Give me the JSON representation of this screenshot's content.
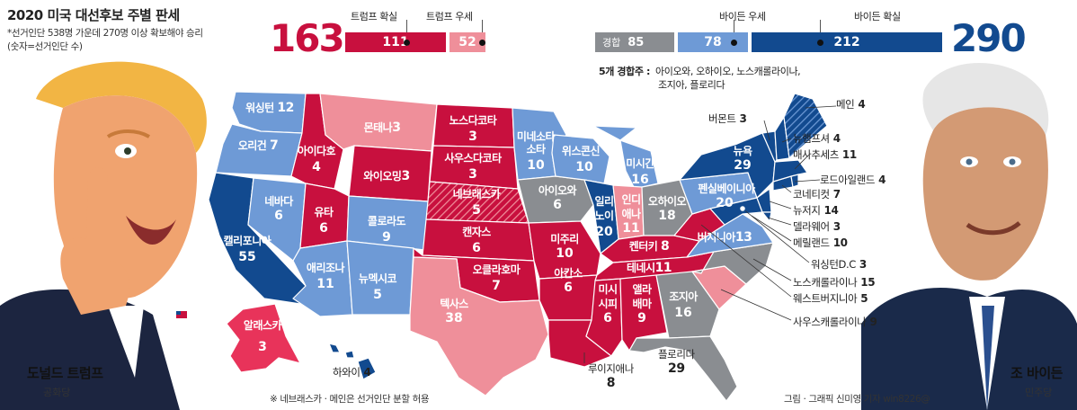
{
  "header": {
    "title": "2020 미국 대선후보 주별 판세",
    "note_line1": "*선거인단 538명 가운데 270명 이상 확보해야 승리",
    "note_line2": "(숫자=선거인단 수)"
  },
  "candidates": {
    "trump": {
      "name": "도널드 트럼프",
      "party": "공화당"
    },
    "biden": {
      "name": "조 바이든",
      "party": "민주당"
    }
  },
  "tally": {
    "trump_total": "163",
    "biden_total": "290",
    "categories": {
      "trump_solid": {
        "label": "트럼프 확실",
        "value": "111"
      },
      "trump_lean": {
        "label": "트럼프 우세",
        "value": "52"
      },
      "tossup": {
        "label": "경합",
        "value": "85"
      },
      "biden_lean": {
        "label": "바이든 우세",
        "value": "78"
      },
      "biden_solid": {
        "label": "바이든 확실",
        "value": "212"
      }
    },
    "swing_label": "5개 경합주 :",
    "swing_line1": "아이오와, 오하이오, 노스캐롤라이나,",
    "swing_line2": "조지아, 플로리다"
  },
  "colors": {
    "trump_solid": "#c8103e",
    "trump_lean": "#ef8f9a",
    "tossup": "#8a8d91",
    "biden_lean": "#6e9ad6",
    "biden_solid": "#124a8f"
  },
  "states": {
    "wa": {
      "name": "워싱턴",
      "votes": "12"
    },
    "or": {
      "name": "오리건",
      "votes": "7"
    },
    "ca": {
      "name": "캘리포니아",
      "votes": "55"
    },
    "nv": {
      "name": "네바다",
      "votes": "6"
    },
    "id": {
      "name": "아이다호",
      "votes": "4"
    },
    "mt": {
      "name": "몬태나",
      "votes": "3"
    },
    "wy": {
      "name": "와이오밍",
      "votes": "3"
    },
    "ut": {
      "name": "유타",
      "votes": "6"
    },
    "co": {
      "name": "콜로라도",
      "votes": "9"
    },
    "az": {
      "name": "애리조나",
      "votes": "11"
    },
    "nm": {
      "name": "뉴멕시코",
      "votes": "5"
    },
    "nd": {
      "name": "노스다코타",
      "votes": "3"
    },
    "sd": {
      "name": "사우스다코타",
      "votes": "3"
    },
    "ne": {
      "name": "네브래스카",
      "votes": "5"
    },
    "ks": {
      "name": "캔자스",
      "votes": "6"
    },
    "ok": {
      "name": "오클라호마",
      "votes": "7"
    },
    "tx": {
      "name": "텍사스",
      "votes": "38"
    },
    "mn": {
      "name": "미네소타",
      "votes": "10"
    },
    "ia": {
      "name": "아이오와",
      "votes": "6"
    },
    "mo": {
      "name": "미주리",
      "votes": "10"
    },
    "ar": {
      "name": "아칸소",
      "votes": "6"
    },
    "wi": {
      "name": "위스콘신",
      "votes": "10"
    },
    "il": {
      "name": "일리노이",
      "votes": "20"
    },
    "mi": {
      "name": "미시간",
      "votes": "16"
    },
    "in": {
      "name": "인디애나",
      "votes": "11"
    },
    "oh": {
      "name": "오하이오",
      "votes": "18"
    },
    "ky": {
      "name": "켄터키",
      "votes": "8"
    },
    "tn": {
      "name": "테네시",
      "votes": "11"
    },
    "ms": {
      "name": "미시시피",
      "votes": "6"
    },
    "al": {
      "name": "앨라배마",
      "votes": "9"
    },
    "ga": {
      "name": "조지아",
      "votes": "16"
    },
    "fl": {
      "name": "플로리다",
      "votes": "29"
    },
    "la": {
      "name": "루이지애나",
      "votes": "8"
    },
    "pa": {
      "name": "펜실베이니아",
      "votes": "20"
    },
    "ny": {
      "name": "뉴욕",
      "votes": "29"
    },
    "va": {
      "name": "버지니아",
      "votes": "13"
    },
    "ak": {
      "name": "알래스카",
      "votes": "3"
    },
    "hi": {
      "name": "하와이",
      "votes": "4"
    }
  },
  "callouts": {
    "vt": {
      "name": "버몬트",
      "votes": "3"
    },
    "me": {
      "name": "메인",
      "votes": "4"
    },
    "nh": {
      "name": "뉴햄프셔",
      "votes": "4"
    },
    "ma": {
      "name": "매사추세츠",
      "votes": "11"
    },
    "ri": {
      "name": "로드아일랜드",
      "votes": "4"
    },
    "ct": {
      "name": "코네티컷",
      "votes": "7"
    },
    "nj": {
      "name": "뉴저지",
      "votes": "14"
    },
    "de": {
      "name": "델라웨어",
      "votes": "3"
    },
    "md": {
      "name": "메릴랜드",
      "votes": "10"
    },
    "dc": {
      "name": "워싱턴D.C",
      "votes": "3"
    },
    "nc": {
      "name": "노스캐롤라이나",
      "votes": "15"
    },
    "wv": {
      "name": "웨스트버지니아",
      "votes": "5"
    },
    "sc": {
      "name": "사우스캐롤라이나",
      "votes": "9"
    }
  },
  "footer": {
    "split_note": "※ 네브래스카 · 메인은 선거인단 분할 허용",
    "credit": "그림 · 그래픽 신미영 기자 win8226@"
  }
}
